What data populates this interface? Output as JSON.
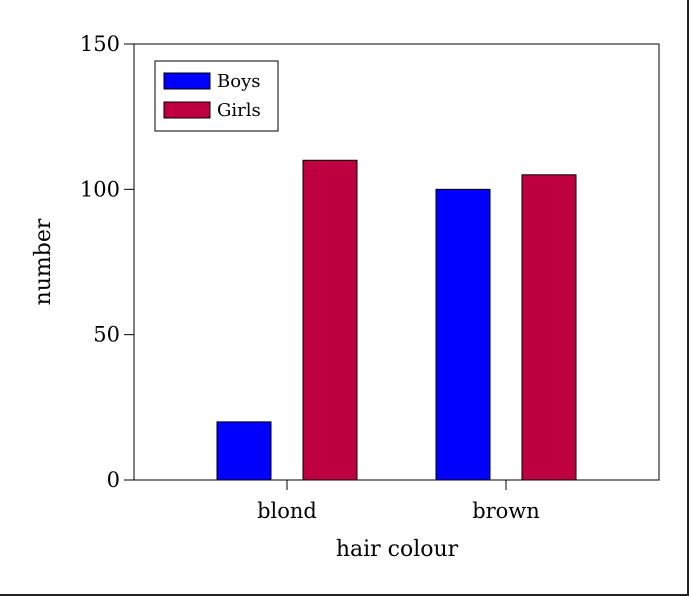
{
  "chart_data": {
    "type": "bar",
    "categories": [
      "blond",
      "brown"
    ],
    "series": [
      {
        "name": "Boys",
        "values": [
          20,
          100
        ],
        "color": "#0000ff"
      },
      {
        "name": "Girls",
        "values": [
          110,
          105
        ],
        "color": "#bf0040"
      }
    ],
    "xlabel": "hair colour",
    "ylabel": "number",
    "ylim": [
      0,
      150
    ],
    "yticks": [
      0,
      50,
      100,
      150
    ],
    "grid": false,
    "legend_position": "top-left"
  }
}
